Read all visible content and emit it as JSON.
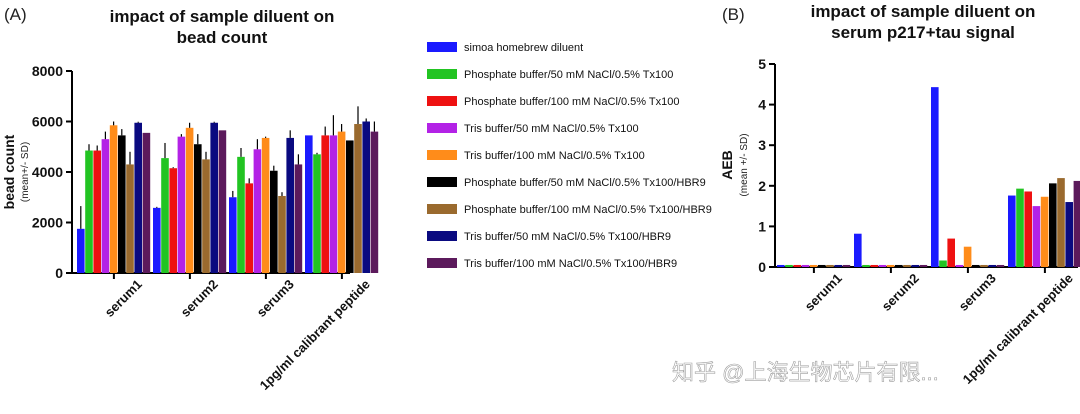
{
  "watermark": "知乎 @上海生物芯片有限...",
  "legend": {
    "entries": [
      {
        "label": "simoa homebrew diluent",
        "color": "#1a1aff"
      },
      {
        "label": "Phosphate buffer/50 mM NaCl/0.5% Tx100",
        "color": "#22c422"
      },
      {
        "label": "Phosphate buffer/100 mM NaCl/0.5% Tx100",
        "color": "#ee1111"
      },
      {
        "label": "Tris buffer/50 mM NaCl/0.5% Tx100",
        "color": "#b322e6"
      },
      {
        "label": "Tris buffer/100 mM NaCl/0.5% Tx100",
        "color": "#ff8c1a"
      },
      {
        "label": "Phosphate buffer/50 mM NaCl/0.5% Tx100/HBR9",
        "color": "#000000"
      },
      {
        "label": "Phosphate buffer/100 mM NaCl/0.5% Tx100/HBR9",
        "color": "#9a6a2e"
      },
      {
        "label": "Tris buffer/50 mM NaCl/0.5% Tx100/HBR9",
        "color": "#0a0a80"
      },
      {
        "label": "Tris buffer/100 mM NaCl/0.5% Tx100/HBR9",
        "color": "#5c1a5c"
      }
    ]
  },
  "chart_data": [
    {
      "panel": "(A)",
      "type": "bar",
      "title": [
        "impact of sample diluent on",
        "bead count"
      ],
      "ylabel": "bead count",
      "ylabel_sub": "(mean+/- SD)",
      "ylim": [
        0,
        8000
      ],
      "yticks": [
        "0",
        "2000",
        "4000",
        "6000",
        "8000"
      ],
      "categories": [
        "serum1",
        "serum2",
        "serum3",
        "1pg/ml calibrant peptide"
      ],
      "series": [
        {
          "name": "simoa homebrew diluent",
          "values": [
            1750,
            2580,
            3000,
            5450
          ],
          "err": [
            900,
            40,
            250,
            0
          ]
        },
        {
          "name": "Phosphate buffer/50 mM NaCl/0.5% Tx100",
          "values": [
            4850,
            4550,
            4600,
            4700
          ],
          "err": [
            250,
            600,
            350,
            60
          ]
        },
        {
          "name": "Phosphate buffer/100 mM NaCl/0.5% Tx100",
          "values": [
            4850,
            4150,
            3550,
            5450
          ],
          "err": [
            200,
            40,
            200,
            350
          ]
        },
        {
          "name": "Tris buffer/50 mM NaCl/0.5% Tx100",
          "values": [
            5300,
            5400,
            4900,
            5450
          ],
          "err": [
            300,
            100,
            400,
            800
          ]
        },
        {
          "name": "Tris buffer/100 mM NaCl/0.5% Tx100",
          "values": [
            5850,
            5750,
            5350,
            5600
          ],
          "err": [
            150,
            200,
            50,
            300
          ]
        },
        {
          "name": "Phosphate buffer/50 mM NaCl/0.5% Tx100/HBR9",
          "values": [
            5450,
            5100,
            4050,
            5250
          ],
          "err": [
            250,
            400,
            200,
            0
          ]
        },
        {
          "name": "Phosphate buffer/100 mM NaCl/0.5% Tx100/HBR9",
          "values": [
            4300,
            4500,
            3050,
            5900
          ],
          "err": [
            500,
            300,
            150,
            700
          ]
        },
        {
          "name": "Tris buffer/50 mM NaCl/0.5% Tx100/HBR9",
          "values": [
            5950,
            5950,
            5350,
            6000
          ],
          "err": [
            40,
            40,
            300,
            120
          ]
        },
        {
          "name": "Tris buffer/100 mM NaCl/0.5% Tx100/HBR9",
          "values": [
            5550,
            5650,
            4300,
            5600
          ],
          "err": [
            0,
            0,
            400,
            400
          ]
        }
      ]
    },
    {
      "panel": "(B)",
      "type": "bar",
      "title": [
        "impact of sample diluent on",
        "serum p217+tau signal"
      ],
      "ylabel": "AEB",
      "ylabel_sub": "(mean +/- SD)",
      "ylim": [
        0,
        5
      ],
      "yticks": [
        "0",
        "1",
        "2",
        "3",
        "4",
        "5"
      ],
      "categories": [
        "serum1",
        "serum2",
        "serum3",
        "1pg/ml calibrant peptide"
      ],
      "series": [
        {
          "name": "simoa homebrew diluent",
          "values": [
            0.05,
            0.82,
            4.43,
            1.76
          ],
          "err": [
            0,
            0,
            0,
            0
          ]
        },
        {
          "name": "Phosphate buffer/50 mM NaCl/0.5% Tx100",
          "values": [
            0.05,
            0.05,
            0.16,
            1.93
          ],
          "err": [
            0,
            0,
            0,
            0
          ]
        },
        {
          "name": "Phosphate buffer/100 mM NaCl/0.5% Tx100",
          "values": [
            0.05,
            0.05,
            0.7,
            1.86
          ],
          "err": [
            0,
            0,
            0,
            0
          ]
        },
        {
          "name": "Tris buffer/50 mM NaCl/0.5% Tx100",
          "values": [
            0.05,
            0.05,
            0.05,
            1.5
          ],
          "err": [
            0,
            0,
            0,
            0
          ]
        },
        {
          "name": "Tris buffer/100 mM NaCl/0.5% Tx100",
          "values": [
            0.05,
            0.05,
            0.5,
            1.73
          ],
          "err": [
            0,
            0,
            0,
            0
          ]
        },
        {
          "name": "Phosphate buffer/50 mM NaCl/0.5% Tx100/HBR9",
          "values": [
            0.05,
            0.05,
            0.05,
            2.06
          ],
          "err": [
            0,
            0,
            0,
            0
          ]
        },
        {
          "name": "Phosphate buffer/100 mM NaCl/0.5% Tx100/HBR9",
          "values": [
            0.05,
            0.05,
            0.05,
            2.19
          ],
          "err": [
            0,
            0,
            0,
            0
          ]
        },
        {
          "name": "Tris buffer/50 mM NaCl/0.5% Tx100/HBR9",
          "values": [
            0.05,
            0.05,
            0.05,
            1.6
          ],
          "err": [
            0,
            0,
            0,
            0
          ]
        },
        {
          "name": "Tris buffer/100 mM NaCl/0.5% Tx100/HBR9",
          "values": [
            0.05,
            0.05,
            0.05,
            2.12
          ],
          "err": [
            0,
            0,
            0,
            0
          ]
        }
      ]
    }
  ]
}
